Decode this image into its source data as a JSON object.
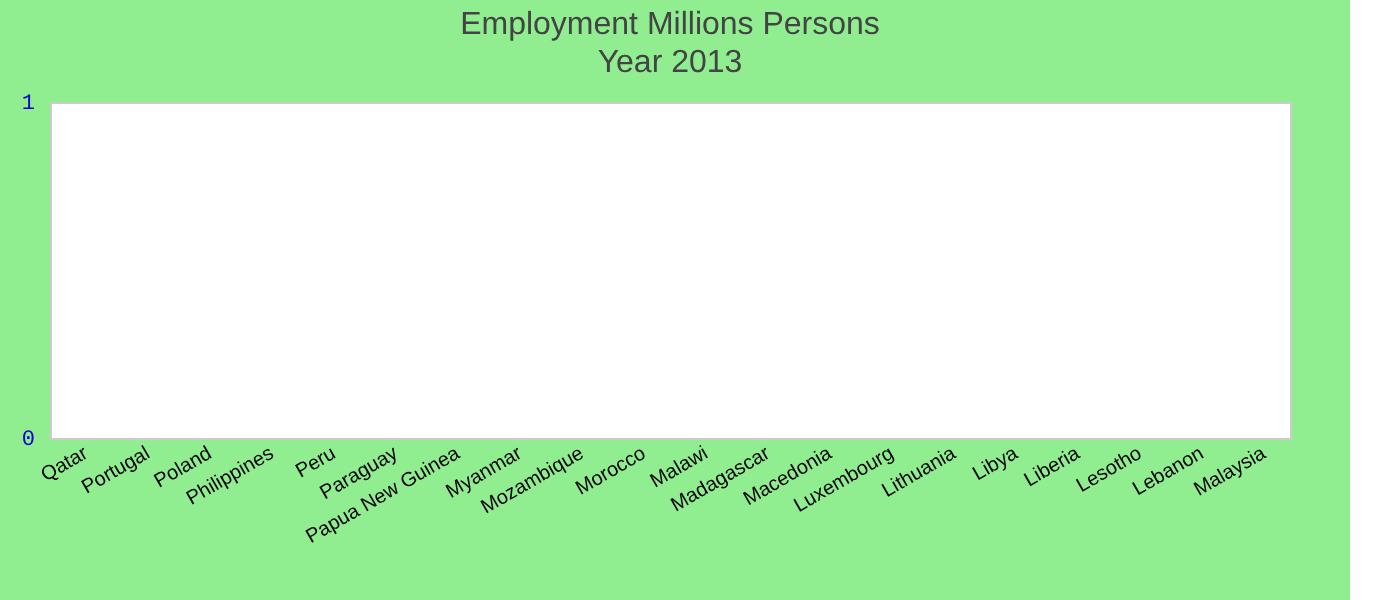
{
  "chart_data": {
    "type": "bar",
    "title": "Employment Millions Persons",
    "subtitle": "Year 2013",
    "categories": [
      "Qatar",
      "Portugal",
      "Poland",
      "Philippines",
      "Peru",
      "Paraguay",
      "Papua New Guinea",
      "Myanmar",
      "Mozambique",
      "Morocco",
      "Malawi",
      "Madagascar",
      "Macedonia",
      "Luxembourg",
      "Lithuania",
      "Libya",
      "Liberia",
      "Lesotho",
      "Lebanon",
      "Malaysia"
    ],
    "values": [
      null,
      null,
      null,
      null,
      null,
      null,
      null,
      null,
      null,
      null,
      null,
      null,
      null,
      null,
      null,
      null,
      null,
      null,
      null,
      null
    ],
    "ylim": [
      0,
      1
    ],
    "yticks": [
      0,
      1
    ],
    "grid": false
  }
}
